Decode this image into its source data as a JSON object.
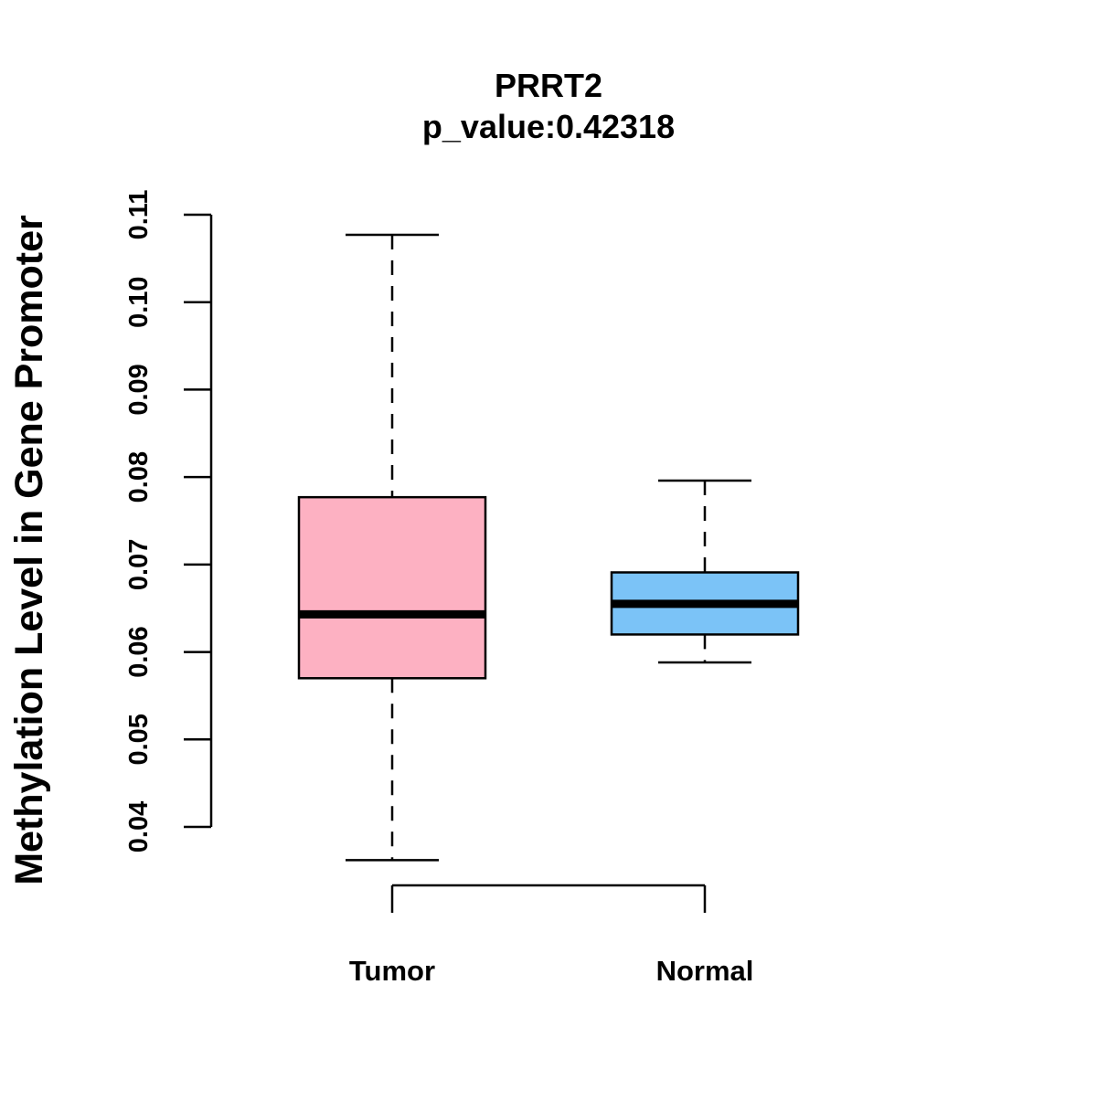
{
  "chart_data": {
    "type": "boxplot",
    "title": "PRRT2",
    "subtitle": "p_value:0.42318",
    "xlabel": "",
    "ylabel": "Methylation Level in Gene Promoter",
    "ylim": [
      0.04,
      0.11
    ],
    "yticks": [
      0.04,
      0.05,
      0.06,
      0.07,
      0.08,
      0.09,
      0.1,
      0.11
    ],
    "ytick_labels": [
      "0.04",
      "0.05",
      "0.06",
      "0.07",
      "0.08",
      "0.09",
      "0.10",
      "0.11"
    ],
    "categories": [
      "Tumor",
      "Normal"
    ],
    "boxes": [
      {
        "name": "Tumor",
        "color": "#FDB1C2",
        "whisker_low": 0.0362,
        "q1": 0.057,
        "median": 0.0643,
        "q3": 0.0777,
        "whisker_high": 0.1077
      },
      {
        "name": "Normal",
        "color": "#7BC3F7",
        "whisker_low": 0.0588,
        "q1": 0.062,
        "median": 0.0655,
        "q3": 0.0691,
        "whisker_high": 0.0796
      }
    ]
  }
}
